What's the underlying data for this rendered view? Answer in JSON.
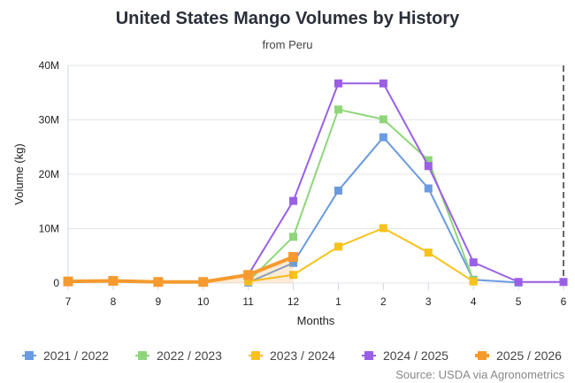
{
  "title": "United States Mango Volumes by History",
  "subtitle": "from Peru",
  "source": "Source: USDA via Agronometrics",
  "chart_data": {
    "type": "line",
    "title": "United States Mango Volumes by History",
    "subtitle": "from Peru",
    "xlabel": "Months",
    "ylabel": "Volume (kg)",
    "categories": [
      "7",
      "8",
      "9",
      "10",
      "11",
      "12",
      "1",
      "2",
      "3",
      "4",
      "5",
      "6"
    ],
    "ylim": [
      0,
      40000000
    ],
    "yticks": [
      0,
      10000000,
      20000000,
      30000000,
      40000000
    ],
    "ytick_labels": [
      "0",
      "10M",
      "20M",
      "30M",
      "40M"
    ],
    "grid": true,
    "legend": "bottom",
    "series": [
      {
        "name": "2021 / 2022",
        "color": "#6a9be0",
        "values": [
          null,
          null,
          null,
          null,
          100000,
          3700000,
          17000000,
          26800000,
          17400000,
          600000,
          100000,
          null
        ]
      },
      {
        "name": "2022 / 2023",
        "color": "#8fd67a",
        "values": [
          null,
          null,
          null,
          null,
          300000,
          8500000,
          31900000,
          30100000,
          22600000,
          500000,
          null,
          null
        ]
      },
      {
        "name": "2023 / 2024",
        "color": "#f7c21b",
        "values": [
          null,
          null,
          null,
          null,
          300000,
          1500000,
          6700000,
          10100000,
          5600000,
          300000,
          null,
          null
        ]
      },
      {
        "name": "2024 / 2025",
        "color": "#9b5fe6",
        "values": [
          null,
          null,
          null,
          null,
          1500000,
          15100000,
          36700000,
          36700000,
          21500000,
          3800000,
          200000,
          200000
        ]
      },
      {
        "name": "2025 / 2026",
        "color": "#f59a2f",
        "values": [
          300000,
          400000,
          200000,
          200000,
          1500000,
          4800000,
          null,
          null,
          null,
          null,
          null,
          null
        ],
        "highlight": true
      }
    ],
    "marker_line": "6"
  }
}
